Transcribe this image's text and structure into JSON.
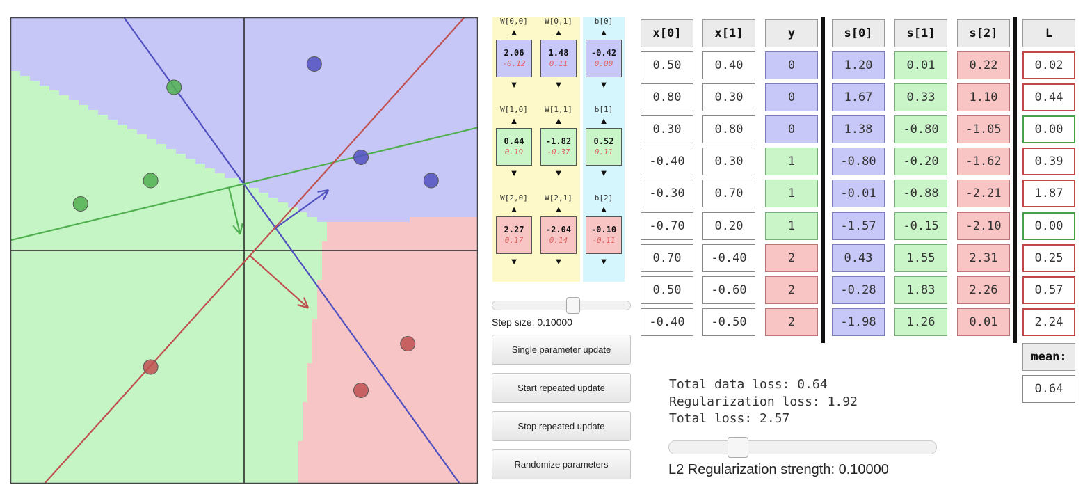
{
  "plot": {
    "xlim": [
      -1,
      1
    ],
    "ylim": [
      -1,
      1
    ],
    "colors": {
      "class0": "#5050c0",
      "class1": "#50b050",
      "class2": "#c05050",
      "bg0": "#c7c7f7",
      "bg1": "#c5f5c5",
      "bg2": "#f7c5c5",
      "axis": "#222222"
    },
    "points": [
      {
        "x": 0.5,
        "y": 0.4,
        "cls": 0
      },
      {
        "x": 0.8,
        "y": 0.3,
        "cls": 0
      },
      {
        "x": 0.3,
        "y": 0.8,
        "cls": 0
      },
      {
        "x": -0.4,
        "y": 0.3,
        "cls": 1
      },
      {
        "x": -0.3,
        "y": 0.7,
        "cls": 1
      },
      {
        "x": -0.7,
        "y": 0.2,
        "cls": 1
      },
      {
        "x": 0.7,
        "y": -0.4,
        "cls": 2
      },
      {
        "x": 0.5,
        "y": -0.6,
        "cls": 2
      },
      {
        "x": -0.4,
        "y": -0.5,
        "cls": 2
      }
    ]
  },
  "params": {
    "names": {
      "w00": "W[0,0]",
      "w01": "W[0,1]",
      "b0": "b[0]",
      "w10": "W[1,0]",
      "w11": "W[1,1]",
      "b1": "b[1]",
      "w20": "W[2,0]",
      "w21": "W[2,1]",
      "b2": "b[2]"
    },
    "values": {
      "w00": "2.06",
      "w01": "1.48",
      "b0": "-0.42",
      "w10": "0.44",
      "w11": "-1.82",
      "b1": "0.52",
      "w20": "2.27",
      "w21": "-2.04",
      "b2": "-0.10"
    },
    "grads": {
      "w00": "-0.12",
      "w01": "0.11",
      "b0": "0.00",
      "w10": "0.19",
      "w11": "-0.37",
      "b1": "0.11",
      "w20": "0.17",
      "w21": "0.14",
      "b2": "-0.11"
    },
    "arrow_up": "▲",
    "arrow_down": "▼"
  },
  "controls": {
    "step_label": "Step size: 0.10000",
    "step_value": 0.1,
    "single_update": "Single parameter update",
    "start_repeated": "Start repeated update",
    "stop_repeated": "Stop repeated update",
    "randomize": "Randomize parameters"
  },
  "table": {
    "headers": [
      "x[0]",
      "x[1]",
      "y",
      "s[0]",
      "s[1]",
      "s[2]",
      "L"
    ],
    "rows": [
      {
        "x0": "0.50",
        "x1": "0.40",
        "y": "0",
        "s0": "1.20",
        "s1": "0.01",
        "s2": "0.22",
        "L": "0.02",
        "Lc": "red"
      },
      {
        "x0": "0.80",
        "x1": "0.30",
        "y": "0",
        "s0": "1.67",
        "s1": "0.33",
        "s2": "1.10",
        "L": "0.44",
        "Lc": "red"
      },
      {
        "x0": "0.30",
        "x1": "0.80",
        "y": "0",
        "s0": "1.38",
        "s1": "-0.80",
        "s2": "-1.05",
        "L": "0.00",
        "Lc": "green"
      },
      {
        "x0": "-0.40",
        "x1": "0.30",
        "y": "1",
        "s0": "-0.80",
        "s1": "-0.20",
        "s2": "-1.62",
        "L": "0.39",
        "Lc": "red"
      },
      {
        "x0": "-0.30",
        "x1": "0.70",
        "y": "1",
        "s0": "-0.01",
        "s1": "-0.88",
        "s2": "-2.21",
        "L": "1.87",
        "Lc": "red"
      },
      {
        "x0": "-0.70",
        "x1": "0.20",
        "y": "1",
        "s0": "-1.57",
        "s1": "-0.15",
        "s2": "-2.10",
        "L": "0.00",
        "Lc": "green"
      },
      {
        "x0": "0.70",
        "x1": "-0.40",
        "y": "2",
        "s0": "0.43",
        "s1": "1.55",
        "s2": "2.31",
        "L": "0.25",
        "Lc": "red"
      },
      {
        "x0": "0.50",
        "x1": "-0.60",
        "y": "2",
        "s0": "-0.28",
        "s1": "1.83",
        "s2": "2.26",
        "L": "0.57",
        "Lc": "red"
      },
      {
        "x0": "-0.40",
        "x1": "-0.50",
        "y": "2",
        "s0": "-1.98",
        "s1": "1.26",
        "s2": "0.01",
        "L": "2.24",
        "Lc": "red"
      }
    ],
    "mean_label": "mean:",
    "mean_value": "0.64"
  },
  "loss": {
    "data_loss": "Total data loss: 0.64",
    "reg_loss": "Regularization loss: 1.92",
    "total_loss": "Total loss: 2.57"
  },
  "regularization": {
    "label": "L2 Regularization strength: 0.10000",
    "value": 0.1
  }
}
